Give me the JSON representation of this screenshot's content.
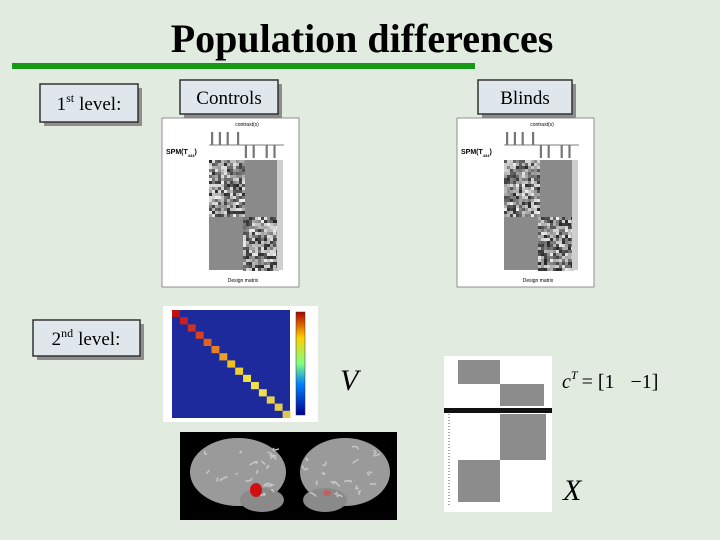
{
  "title": "Population differences",
  "levels": [
    {
      "number": "1",
      "suffix": "st",
      "label": "level:"
    },
    {
      "number": "2",
      "suffix": "nd",
      "label": "level:"
    }
  ],
  "groups": [
    {
      "label": "Controls"
    },
    {
      "label": "Blinds"
    }
  ],
  "design_matrix": {
    "title": "contrast(s)",
    "spm": "SPM(T",
    "spm_sub": "434",
    "spm_close": ")",
    "x_label": "Design matrix"
  },
  "covariance_label": "V",
  "design_label": "X",
  "contrast": {
    "symbol": "c",
    "superscript": "T",
    "equals": "= [1",
    "value": "−1]"
  }
}
